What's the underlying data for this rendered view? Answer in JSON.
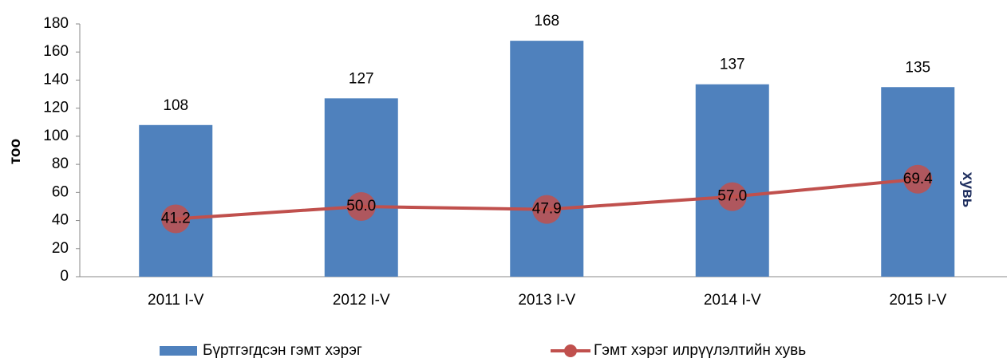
{
  "chart_data": {
    "type": "bar",
    "categories": [
      "2011 I-V",
      "2012 I-V",
      "2013 I-V",
      "2014 I-V",
      "2015 I-V"
    ],
    "series": [
      {
        "name": "Бүртгэгдсэн гэмт хэрэг",
        "type": "bar",
        "color": "#4f81bd",
        "values": [
          108,
          127,
          168,
          137,
          135
        ]
      },
      {
        "name": "Гэмт хэрэг илрүүлэлтийн хувь",
        "type": "line",
        "color": "#c0504d",
        "values": [
          41.2,
          50.0,
          47.9,
          57.0,
          69.4
        ],
        "value_labels": [
          "41.2",
          "50.0",
          "47.9",
          "57.0",
          "69.4"
        ]
      }
    ],
    "y_label": "тоо",
    "y2_label": "хувь",
    "ylim": [
      0,
      180
    ],
    "yticks": [
      0,
      20,
      40,
      60,
      80,
      100,
      120,
      140,
      160,
      180
    ],
    "grid": false,
    "legend": "bottom"
  }
}
